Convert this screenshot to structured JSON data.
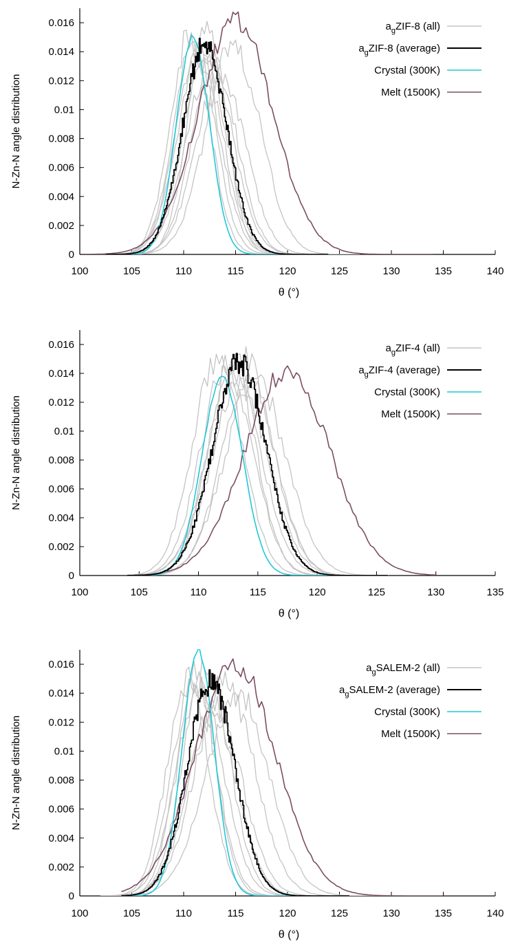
{
  "colors": {
    "all": "#c4c4c4",
    "average": "#000000",
    "crystal": "#1ec8d8",
    "melt": "#7a4e62"
  },
  "chart_data": [
    {
      "type": "line",
      "xlabel": "θ (°)",
      "ylabel": "N-Zn-N angle distribution",
      "xlim": [
        100,
        140
      ],
      "ylim": [
        0,
        0.017
      ],
      "xticks": [
        "100",
        "105",
        "110",
        "115",
        "120",
        "125",
        "130",
        "135",
        "140"
      ],
      "yticks": [
        "0",
        "0.002",
        "0.004",
        "0.006",
        "0.008",
        "0.01",
        "0.012",
        "0.014",
        "0.016"
      ],
      "legend": {
        "position": "top-right",
        "entries": [
          {
            "series": "all",
            "prefix": "a",
            "sub": "g",
            "text": "ZIF-8 (all)"
          },
          {
            "series": "average",
            "prefix": "a",
            "sub": "g",
            "text": "ZIF-8 (average)"
          },
          {
            "series": "crystal",
            "prefix": "",
            "sub": "",
            "text": "Crystal (300K)"
          },
          {
            "series": "melt",
            "prefix": "",
            "sub": "",
            "text": "Melt (1500K)"
          }
        ]
      },
      "series": [
        {
          "key": "all",
          "center": 110.6,
          "sigma": 1.9,
          "peak": 0.0152,
          "range": [
            103,
            122
          ]
        },
        {
          "key": "all",
          "center": 111.0,
          "sigma": 2.0,
          "peak": 0.0145,
          "range": [
            103,
            122
          ]
        },
        {
          "key": "all",
          "center": 111.5,
          "sigma": 2.2,
          "peak": 0.014,
          "range": [
            103,
            123
          ]
        },
        {
          "key": "all",
          "center": 112.0,
          "sigma": 2.1,
          "peak": 0.0139,
          "range": [
            103,
            123
          ]
        },
        {
          "key": "all",
          "center": 112.5,
          "sigma": 2.3,
          "peak": 0.013,
          "range": [
            104,
            124
          ]
        },
        {
          "key": "all",
          "center": 113.0,
          "sigma": 2.2,
          "peak": 0.0128,
          "range": [
            104,
            124
          ]
        },
        {
          "key": "all",
          "center": 112.2,
          "sigma": 1.8,
          "peak": 0.0158,
          "range": [
            104,
            123
          ]
        },
        {
          "key": "all",
          "center": 113.6,
          "sigma": 2.4,
          "peak": 0.0125,
          "range": [
            104,
            125
          ]
        },
        {
          "key": "all",
          "center": 114.8,
          "sigma": 2.6,
          "peak": 0.0145,
          "range": [
            105,
            127
          ]
        },
        {
          "key": "all",
          "center": 111.4,
          "sigma": 2.1,
          "peak": 0.0133,
          "range": [
            103,
            123
          ]
        },
        {
          "key": "melt",
          "center": 115.0,
          "sigma": 3.6,
          "peak": 0.0162,
          "range": [
            100.5,
            134
          ]
        },
        {
          "key": "crystal",
          "center": 110.9,
          "sigma": 1.6,
          "peak": 0.015,
          "range": [
            104.5,
            119
          ]
        },
        {
          "key": "average",
          "center": 112.0,
          "sigma": 2.15,
          "peak": 0.0145,
          "range": [
            102.5,
            124
          ]
        }
      ]
    },
    {
      "type": "line",
      "xlabel": "θ (°)",
      "ylabel": "N-Zn-N angle distribution",
      "xlim": [
        100,
        135
      ],
      "ylim": [
        0,
        0.017
      ],
      "xticks": [
        "100",
        "105",
        "110",
        "115",
        "120",
        "125",
        "130",
        "135"
      ],
      "yticks": [
        "0",
        "0.002",
        "0.004",
        "0.006",
        "0.008",
        "0.01",
        "0.012",
        "0.014",
        "0.016"
      ],
      "legend": {
        "position": "top-right",
        "entries": [
          {
            "series": "all",
            "prefix": "a",
            "sub": "g",
            "text": "ZIF-4 (all)"
          },
          {
            "series": "average",
            "prefix": "a",
            "sub": "g",
            "text": "ZIF-4 (average)"
          },
          {
            "series": "crystal",
            "prefix": "",
            "sub": "",
            "text": "Crystal (300K)"
          },
          {
            "series": "melt",
            "prefix": "",
            "sub": "",
            "text": "Melt (1500K)"
          }
        ]
      },
      "series": [
        {
          "key": "all",
          "center": 111.6,
          "sigma": 2.1,
          "peak": 0.015,
          "range": [
            104,
            123
          ]
        },
        {
          "key": "all",
          "center": 112.4,
          "sigma": 2.2,
          "peak": 0.0146,
          "range": [
            104,
            124
          ]
        },
        {
          "key": "all",
          "center": 113.0,
          "sigma": 2.3,
          "peak": 0.014,
          "range": [
            105,
            124
          ]
        },
        {
          "key": "all",
          "center": 113.8,
          "sigma": 2.4,
          "peak": 0.0152,
          "range": [
            105,
            125
          ]
        },
        {
          "key": "all",
          "center": 114.2,
          "sigma": 2.3,
          "peak": 0.0138,
          "range": [
            105,
            125
          ]
        },
        {
          "key": "all",
          "center": 112.8,
          "sigma": 2.0,
          "peak": 0.0148,
          "range": [
            104,
            123
          ]
        },
        {
          "key": "all",
          "center": 113.4,
          "sigma": 2.5,
          "peak": 0.0133,
          "range": [
            105,
            125
          ]
        },
        {
          "key": "all",
          "center": 114.8,
          "sigma": 2.6,
          "peak": 0.0135,
          "range": [
            106,
            126
          ]
        },
        {
          "key": "melt",
          "center": 117.5,
          "sigma": 3.6,
          "peak": 0.0142,
          "range": [
            104,
            130
          ]
        },
        {
          "key": "crystal",
          "center": 112.0,
          "sigma": 1.7,
          "peak": 0.0138,
          "range": [
            105,
            121
          ]
        },
        {
          "key": "average",
          "center": 113.4,
          "sigma": 2.25,
          "peak": 0.0148,
          "range": [
            104,
            126
          ]
        }
      ]
    },
    {
      "type": "line",
      "xlabel": "θ (°)",
      "ylabel": "N-Zn-N angle distribution",
      "xlim": [
        100,
        140
      ],
      "ylim": [
        0,
        0.017
      ],
      "xticks": [
        "100",
        "105",
        "110",
        "115",
        "120",
        "125",
        "130",
        "135",
        "140"
      ],
      "yticks": [
        "0",
        "0.002",
        "0.004",
        "0.006",
        "0.008",
        "0.01",
        "0.012",
        "0.014",
        "0.016"
      ],
      "legend": {
        "position": "top-right",
        "entries": [
          {
            "series": "all",
            "prefix": "a",
            "sub": "g",
            "text": "SALEM-2 (all)"
          },
          {
            "series": "average",
            "prefix": "a",
            "sub": "g",
            "text": "SALEM-2 (average)"
          },
          {
            "series": "crystal",
            "prefix": "",
            "sub": "",
            "text": "Crystal (300K)"
          },
          {
            "series": "melt",
            "prefix": "",
            "sub": "",
            "text": "Melt (1500K)"
          }
        ]
      },
      "series": [
        {
          "key": "all",
          "center": 110.4,
          "sigma": 2.0,
          "peak": 0.015,
          "range": [
            102,
            122
          ]
        },
        {
          "key": "all",
          "center": 111.0,
          "sigma": 2.1,
          "peak": 0.0152,
          "range": [
            102,
            123
          ]
        },
        {
          "key": "all",
          "center": 111.6,
          "sigma": 2.3,
          "peak": 0.0142,
          "range": [
            102,
            124
          ]
        },
        {
          "key": "all",
          "center": 112.2,
          "sigma": 2.2,
          "peak": 0.016,
          "range": [
            103,
            124
          ]
        },
        {
          "key": "all",
          "center": 113.0,
          "sigma": 2.6,
          "peak": 0.0132,
          "range": [
            103,
            126
          ]
        },
        {
          "key": "all",
          "center": 114.0,
          "sigma": 2.8,
          "peak": 0.0148,
          "range": [
            103,
            128
          ]
        },
        {
          "key": "all",
          "center": 112.8,
          "sigma": 2.4,
          "peak": 0.0125,
          "range": [
            103,
            125
          ]
        },
        {
          "key": "all",
          "center": 115.2,
          "sigma": 3.0,
          "peak": 0.014,
          "range": [
            104,
            130
          ]
        },
        {
          "key": "all",
          "center": 111.2,
          "sigma": 1.9,
          "peak": 0.0155,
          "range": [
            102,
            122
          ]
        },
        {
          "key": "melt",
          "center": 115.0,
          "sigma": 3.9,
          "peak": 0.016,
          "range": [
            104,
            135
          ]
        },
        {
          "key": "crystal",
          "center": 111.4,
          "sigma": 1.55,
          "peak": 0.017,
          "range": [
            105,
            121
          ]
        },
        {
          "key": "average",
          "center": 112.6,
          "sigma": 2.3,
          "peak": 0.0148,
          "range": [
            104,
            126
          ]
        }
      ]
    }
  ]
}
